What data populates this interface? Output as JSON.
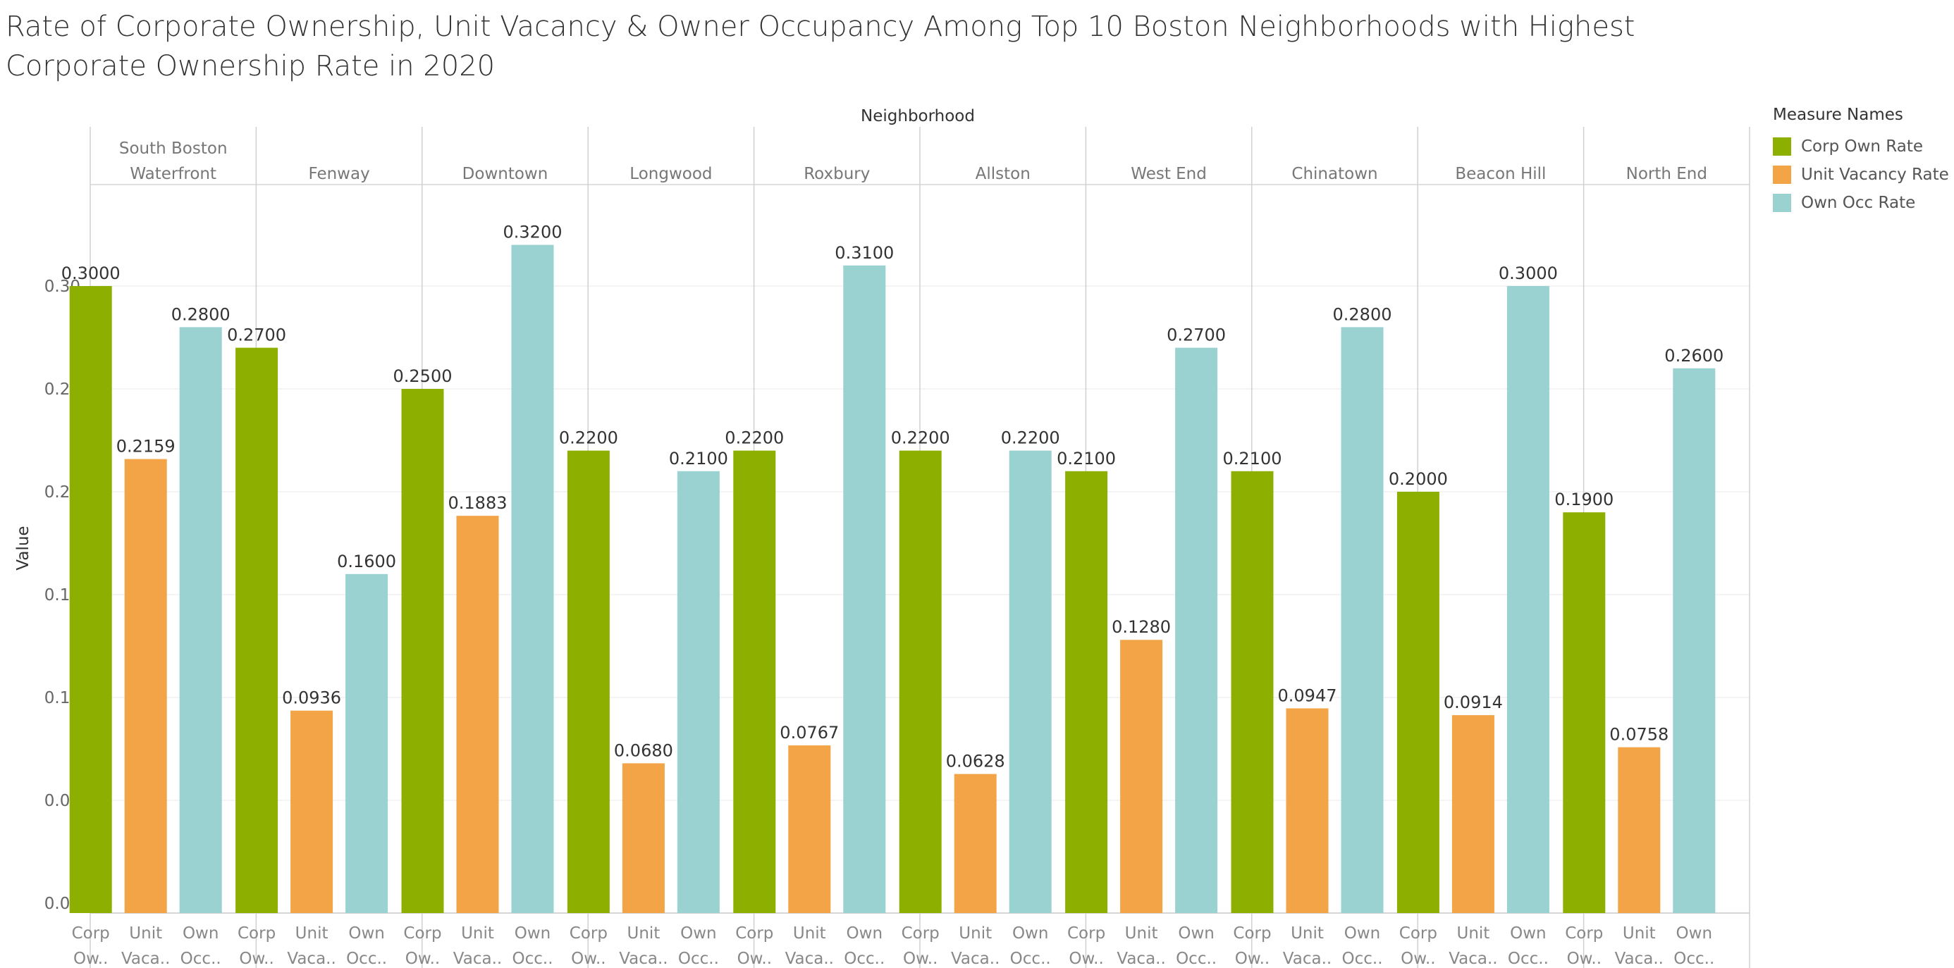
{
  "title": "Rate of Corporate Ownership, Unit Vacancy & Owner Occupancy Among Top 10 Boston Neighborhoods with Highest Corporate Ownership Rate in 2020",
  "legend": {
    "title": "Measure Names",
    "items": [
      {
        "label": "Corp Own Rate",
        "color": "#8db000"
      },
      {
        "label": "Unit Vacancy Rate",
        "color": "#f2a446"
      },
      {
        "label": "Own Occ Rate",
        "color": "#9ad1d1"
      }
    ]
  },
  "chart_data": {
    "type": "bar",
    "title": "Rate of Corporate Ownership, Unit Vacancy & Owner Occupancy Among Top 10 Boston Neighborhoods with Highest Corporate Ownership Rate in 2020",
    "column_header": "Neighborhood",
    "ylabel": "Value",
    "ylim": [
      0,
      0.35
    ],
    "yticks": [
      "0.00",
      "0.05",
      "0.10",
      "0.15",
      "0.20",
      "0.25",
      "0.30"
    ],
    "ytick_values": [
      0,
      0.05,
      0.1,
      0.15,
      0.2,
      0.25,
      0.3
    ],
    "grid": true,
    "legend_position": "right",
    "value_format": "0.0000",
    "measure_tick_labels": [
      [
        "Corp",
        "Ow.."
      ],
      [
        "Unit",
        "Vaca.."
      ],
      [
        "Own",
        "Occ.."
      ]
    ],
    "groups": [
      {
        "name": [
          "South Boston",
          "Waterfront"
        ],
        "values": [
          0.3,
          0.2159,
          0.28
        ]
      },
      {
        "name": [
          "Fenway"
        ],
        "values": [
          0.27,
          0.0936,
          0.16
        ]
      },
      {
        "name": [
          "Downtown"
        ],
        "values": [
          0.25,
          0.1883,
          0.32
        ]
      },
      {
        "name": [
          "Longwood"
        ],
        "values": [
          0.22,
          0.068,
          0.21
        ]
      },
      {
        "name": [
          "Roxbury"
        ],
        "values": [
          0.22,
          0.0767,
          0.31
        ]
      },
      {
        "name": [
          "Allston"
        ],
        "values": [
          0.22,
          0.0628,
          0.22
        ]
      },
      {
        "name": [
          "West End"
        ],
        "values": [
          0.21,
          0.128,
          0.27
        ]
      },
      {
        "name": [
          "Chinatown"
        ],
        "values": [
          0.21,
          0.0947,
          0.28
        ]
      },
      {
        "name": [
          "Beacon Hill"
        ],
        "values": [
          0.2,
          0.0914,
          0.3
        ]
      },
      {
        "name": [
          "North End"
        ],
        "values": [
          0.19,
          0.0758,
          0.26
        ]
      }
    ],
    "series": [
      {
        "name": "Corp Own Rate",
        "color": "#8db000"
      },
      {
        "name": "Unit Vacancy Rate",
        "color": "#f2a446"
      },
      {
        "name": "Own Occ Rate",
        "color": "#9ad1d1"
      }
    ]
  }
}
